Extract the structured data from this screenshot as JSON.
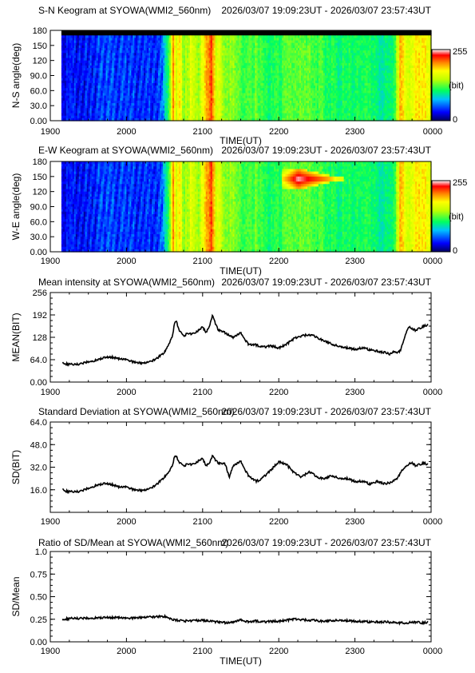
{
  "chart_data": [
    {
      "type": "heatmap",
      "title": "S-N Keogram at SYOWA(WMI2_560nm)",
      "time_range": "2026/03/07 19:09:23UT - 2026/03/07 23:57:43UT",
      "xlabel": "TIME(UT)",
      "ylabel": "N-S angle(deg)",
      "x_ticks": [
        "1900",
        "2000",
        "2100",
        "2200",
        "2300",
        "0000"
      ],
      "y_ticks": [
        "0.00",
        "30.0",
        "60.0",
        "90.0",
        "120",
        "150",
        "180"
      ],
      "ylim": [
        0,
        180
      ],
      "colorbar": {
        "min_label": "0",
        "max_label": "255",
        "unit": "(bit)"
      },
      "intensity_profile": {
        "hours": [
          19.15,
          19.5,
          19.8,
          20.0,
          20.3,
          20.45,
          20.5,
          20.58,
          20.62,
          20.65,
          20.7,
          20.75,
          20.85,
          20.95,
          21.05,
          21.12,
          21.18,
          21.22,
          21.3,
          21.4,
          21.5,
          21.6,
          21.7,
          21.85,
          22.0,
          22.2,
          22.4,
          22.6,
          22.8,
          23.0,
          23.2,
          23.4,
          23.5,
          23.58,
          23.6,
          23.65,
          23.7,
          23.8,
          23.96
        ],
        "level": [
          0.12,
          0.15,
          0.18,
          0.16,
          0.15,
          0.18,
          0.3,
          0.55,
          0.85,
          0.6,
          0.75,
          0.5,
          0.65,
          0.55,
          0.78,
          0.9,
          0.6,
          0.62,
          0.5,
          0.55,
          0.48,
          0.45,
          0.5,
          0.42,
          0.45,
          0.5,
          0.48,
          0.45,
          0.42,
          0.43,
          0.42,
          0.38,
          0.4,
          0.65,
          0.8,
          0.7,
          0.6,
          0.72,
          0.68
        ]
      },
      "missing_data_band": {
        "from_deg": 170,
        "to_deg": 180
      }
    },
    {
      "type": "heatmap",
      "title": "E-W Keogram at SYOWA(WMI2_560nm)",
      "time_range": "2026/03/07 19:09:23UT - 2026/03/07 23:57:43UT",
      "xlabel": "TIME(UT)",
      "ylabel": "W-E angle(deg)",
      "x_ticks": [
        "1900",
        "2000",
        "2100",
        "2200",
        "2300",
        "0000"
      ],
      "y_ticks": [
        "0.00",
        "30.0",
        "60.0",
        "90.0",
        "120",
        "150",
        "180"
      ],
      "ylim": [
        0,
        180
      ],
      "colorbar": {
        "min_label": "0",
        "max_label": "255",
        "unit": "(bit)"
      },
      "intensity_profile": {
        "hours": [
          19.15,
          19.5,
          19.8,
          20.0,
          20.3,
          20.45,
          20.5,
          20.58,
          20.62,
          20.65,
          20.7,
          20.75,
          20.85,
          20.95,
          21.05,
          21.12,
          21.18,
          21.22,
          21.3,
          21.4,
          21.5,
          21.6,
          21.7,
          21.85,
          22.0,
          22.2,
          22.4,
          22.6,
          22.8,
          23.0,
          23.2,
          23.4,
          23.5,
          23.58,
          23.6,
          23.65,
          23.7,
          23.8,
          23.96
        ],
        "level": [
          0.12,
          0.15,
          0.18,
          0.16,
          0.15,
          0.18,
          0.3,
          0.55,
          0.85,
          0.6,
          0.75,
          0.5,
          0.65,
          0.55,
          0.78,
          0.9,
          0.6,
          0.62,
          0.5,
          0.55,
          0.48,
          0.45,
          0.5,
          0.42,
          0.45,
          0.5,
          0.48,
          0.45,
          0.42,
          0.43,
          0.42,
          0.38,
          0.4,
          0.65,
          0.8,
          0.7,
          0.6,
          0.72,
          0.68
        ]
      },
      "bright_feature": {
        "hour_start": 22.05,
        "hour_end": 22.85,
        "deg_center": 145,
        "peak_hour": 22.25
      }
    },
    {
      "type": "line",
      "title": "Mean intensity at SYOWA(WMI2_560nm)",
      "time_range": "2026/03/07 19:09:23UT - 2026/03/07 23:57:43UT",
      "xlabel": "",
      "ylabel": "MEAN(BIT)",
      "x_ticks": [
        "1900",
        "2000",
        "2100",
        "2200",
        "2300",
        "0000"
      ],
      "y_ticks": [
        "0.00",
        "64.0",
        "128",
        "192",
        "256"
      ],
      "ylim": [
        0,
        256
      ],
      "series": [
        {
          "hours": [
            19.16,
            19.2,
            19.3,
            19.4,
            19.5,
            19.6,
            19.7,
            19.8,
            19.9,
            20.0,
            20.1,
            20.2,
            20.3,
            20.4,
            20.5,
            20.55,
            20.6,
            20.63,
            20.65,
            20.7,
            20.75,
            20.8,
            20.9,
            20.95,
            21.0,
            21.05,
            21.1,
            21.13,
            21.2,
            21.3,
            21.4,
            21.5,
            21.6,
            21.7,
            21.8,
            21.9,
            22.0,
            22.1,
            22.2,
            22.3,
            22.4,
            22.5,
            22.6,
            22.7,
            22.8,
            22.9,
            23.0,
            23.1,
            23.2,
            23.3,
            23.4,
            23.45,
            23.5,
            23.55,
            23.6,
            23.65,
            23.7,
            23.75,
            23.8,
            23.9,
            23.96
          ],
          "values": [
            57,
            52,
            50,
            52,
            58,
            62,
            70,
            72,
            67,
            64,
            57,
            54,
            57,
            68,
            85,
            105,
            130,
            165,
            176,
            145,
            132,
            138,
            138,
            150,
            157,
            142,
            167,
            190,
            150,
            140,
            128,
            140,
            108,
            106,
            100,
            103,
            98,
            108,
            124,
            132,
            136,
            128,
            118,
            108,
            102,
            98,
            94,
            98,
            92,
            88,
            84,
            80,
            86,
            85,
            90,
            128,
            158,
            152,
            148,
            160,
            164
          ]
        }
      ]
    },
    {
      "type": "line",
      "title": "Standard Deviation at SYOWA(WMI2_560nm)",
      "time_range": "2026/03/07 19:09:23UT - 2026/03/07 23:57:43UT",
      "xlabel": "",
      "ylabel": "SD(BIT)",
      "x_ticks": [
        "1900",
        "2000",
        "2100",
        "2200",
        "2300",
        "0000"
      ],
      "y_ticks": [
        "16.0",
        "32.0",
        "48.0",
        "64.0"
      ],
      "ylim": [
        0,
        64
      ],
      "series": [
        {
          "hours": [
            19.16,
            19.2,
            19.3,
            19.4,
            19.5,
            19.6,
            19.7,
            19.8,
            19.9,
            20.0,
            20.1,
            20.2,
            20.3,
            20.4,
            20.5,
            20.55,
            20.6,
            20.63,
            20.65,
            20.7,
            20.75,
            20.8,
            20.9,
            20.95,
            21.0,
            21.05,
            21.1,
            21.13,
            21.2,
            21.3,
            21.35,
            21.4,
            21.5,
            21.6,
            21.7,
            21.75,
            21.8,
            21.9,
            22.0,
            22.1,
            22.2,
            22.3,
            22.4,
            22.5,
            22.6,
            22.7,
            22.8,
            22.9,
            23.0,
            23.1,
            23.2,
            23.3,
            23.4,
            23.45,
            23.5,
            23.55,
            23.6,
            23.65,
            23.7,
            23.75,
            23.8,
            23.9,
            23.96
          ],
          "values": [
            17,
            15,
            14.5,
            15,
            17,
            19,
            20.5,
            20,
            18,
            18,
            16,
            15.5,
            16.5,
            20,
            25,
            28,
            33,
            39,
            40,
            35,
            33,
            34,
            34,
            37,
            38,
            33,
            36,
            40,
            35,
            34,
            25,
            33,
            36,
            26,
            22,
            23,
            25,
            30,
            36,
            34,
            28,
            25,
            29,
            25,
            24,
            26,
            24,
            24,
            22,
            22,
            20,
            22,
            20,
            21,
            22,
            24,
            28,
            32,
            34,
            35,
            33,
            35,
            34
          ]
        }
      ]
    },
    {
      "type": "line",
      "title": "Ratio of SD/Mean at SYOWA(WMI2_560nm)",
      "time_range": "2026/03/07 19:09:23UT - 2026/03/07 23:57:43UT",
      "xlabel": "TIME(UT)",
      "ylabel": "SD/Mean",
      "x_ticks": [
        "1900",
        "2000",
        "2100",
        "2200",
        "2300",
        "0000"
      ],
      "y_ticks": [
        "0.00",
        "0.25",
        "0.50",
        "0.75",
        "1.0"
      ],
      "ylim": [
        0,
        1
      ],
      "series": [
        {
          "hours": [
            19.16,
            19.3,
            19.5,
            19.7,
            19.9,
            20.0,
            20.2,
            20.4,
            20.5,
            20.6,
            20.65,
            20.8,
            21.0,
            21.2,
            21.3,
            21.4,
            21.5,
            21.6,
            21.7,
            21.8,
            22.0,
            22.2,
            22.4,
            22.6,
            22.8,
            23.0,
            23.2,
            23.4,
            23.6,
            23.7,
            23.8,
            23.9,
            23.96
          ],
          "values": [
            0.25,
            0.26,
            0.26,
            0.27,
            0.27,
            0.26,
            0.27,
            0.28,
            0.28,
            0.25,
            0.24,
            0.23,
            0.24,
            0.22,
            0.21,
            0.22,
            0.24,
            0.22,
            0.23,
            0.22,
            0.23,
            0.25,
            0.24,
            0.23,
            0.24,
            0.23,
            0.22,
            0.22,
            0.21,
            0.21,
            0.22,
            0.21,
            0.22
          ]
        }
      ]
    }
  ]
}
